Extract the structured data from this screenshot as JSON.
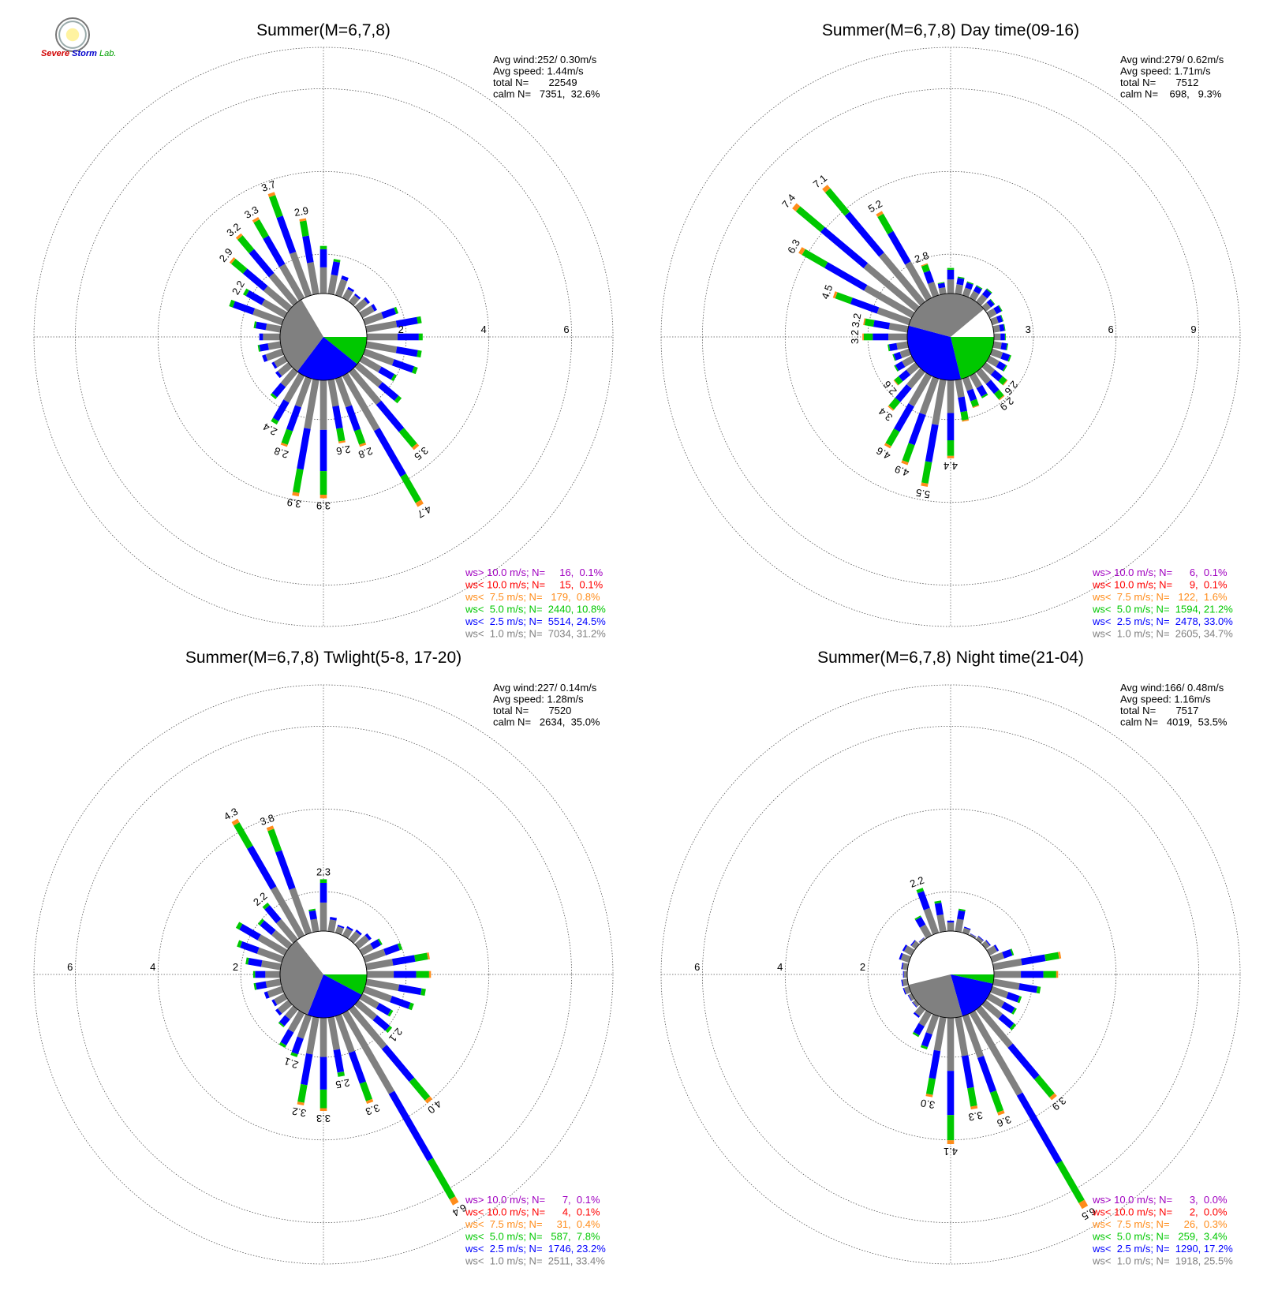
{
  "logo": {
    "text_a": "Severe",
    "text_b": "Storm",
    "text_c": "Lab."
  },
  "colors": {
    "gt10": "#a000c0",
    "lt10": "#ff0000",
    "lt75": "#ff8c1a",
    "lt50": "#00c800",
    "lt25": "#0000ff",
    "lt10ms": "#808080",
    "grid": "#555555"
  },
  "chart_data": [
    {
      "type": "windrose",
      "title": "Summer(M=6,7,8)",
      "stats": [
        "Avg wind:252/ 0.30m/s",
        "Avg speed: 1.44m/s",
        "total N=       22549",
        "calm N=   7351,  32.6%"
      ],
      "ring_labels": [
        "2",
        "4",
        "6"
      ],
      "ring_label_side": "right",
      "rmax": 7,
      "calm_pie": [
        {
          "class": "lt50",
          "frac": 0.108
        },
        {
          "class": "lt25",
          "frac": 0.245
        },
        {
          "class": "lt10ms",
          "frac": 0.312
        }
      ],
      "bars": [
        {
          "dir": 0,
          "total": 2.2
        },
        {
          "dir": 10,
          "total": 1.9
        },
        {
          "dir": 20,
          "total": 1.55
        },
        {
          "dir": 30,
          "total": 1.35
        },
        {
          "dir": 40,
          "total": 1.3
        },
        {
          "dir": 50,
          "total": 1.4
        },
        {
          "dir": 60,
          "total": 1.45
        },
        {
          "dir": 70,
          "total": 1.9
        },
        {
          "dir": 80,
          "total": 2.4
        },
        {
          "dir": 90,
          "total": 2.4
        },
        {
          "dir": 100,
          "total": 2.4
        },
        {
          "dir": 110,
          "total": 2.4
        },
        {
          "dir": 120,
          "total": 2.0
        },
        {
          "dir": 130,
          "total": 2.4
        },
        {
          "dir": 140,
          "total": 3.5,
          "label": "3.5"
        },
        {
          "dir": 150,
          "total": 4.7,
          "label": "4.7"
        },
        {
          "dir": 160,
          "total": 2.8,
          "label": "2.8"
        },
        {
          "dir": 170,
          "total": 2.6,
          "label": "2.6"
        },
        {
          "dir": 180,
          "total": 3.9,
          "label": "3.9"
        },
        {
          "dir": 190,
          "total": 3.9,
          "label": "3.9"
        },
        {
          "dir": 200,
          "total": 2.8,
          "label": "2.8"
        },
        {
          "dir": 210,
          "total": 2.4,
          "label": "2.4"
        },
        {
          "dir": 220,
          "total": 1.9
        },
        {
          "dir": 230,
          "total": 1.45
        },
        {
          "dir": 240,
          "total": 1.4
        },
        {
          "dir": 250,
          "total": 1.55
        },
        {
          "dir": 260,
          "total": 1.6
        },
        {
          "dir": 270,
          "total": 1.55
        },
        {
          "dir": 280,
          "total": 1.7
        },
        {
          "dir": 290,
          "total": 2.4
        },
        {
          "dir": 300,
          "total": 2.2,
          "label": "2.2"
        },
        {
          "dir": 310,
          "total": 2.9,
          "label": "2.9"
        },
        {
          "dir": 320,
          "total": 3.2,
          "label": "3.2"
        },
        {
          "dir": 330,
          "total": 3.3,
          "label": "3.3"
        },
        {
          "dir": 340,
          "total": 3.7,
          "label": "3.7"
        },
        {
          "dir": 350,
          "total": 2.9,
          "label": "2.9"
        }
      ],
      "legend": [
        {
          "class": "gt10",
          "text": "ws> 10.0 m/s; N=     16,  0.1%"
        },
        {
          "class": "lt10",
          "text": "ws< 10.0 m/s; N=     15,  0.1%"
        },
        {
          "class": "lt75",
          "text": "ws<  7.5 m/s; N=   179,  0.8%"
        },
        {
          "class": "lt50",
          "text": "ws<  5.0 m/s; N=  2440, 10.8%"
        },
        {
          "class": "lt25",
          "text": "ws<  2.5 m/s; N=  5514, 24.5%"
        },
        {
          "class": "lt10ms",
          "text": "ws<  1.0 m/s; N=  7034, 31.2%"
        }
      ]
    },
    {
      "type": "windrose",
      "title": "Summer(M=6,7,8) Day time(09-16)",
      "stats": [
        "Avg wind:279/ 0.62m/s",
        "Avg speed: 1.71m/s",
        "total N=       7512",
        "calm N=    698,   9.3%"
      ],
      "ring_labels": [
        "3",
        "6",
        "9"
      ],
      "ring_label_side": "right",
      "rmax": 10.5,
      "calm_pie": [
        {
          "class": "lt50",
          "frac": 0.212
        },
        {
          "class": "lt25",
          "frac": 0.33
        },
        {
          "class": "lt10ms",
          "frac": 0.347
        }
      ],
      "bars": [
        {
          "dir": 0,
          "total": 2.5
        },
        {
          "dir": 10,
          "total": 2.2
        },
        {
          "dir": 20,
          "total": 2.1
        },
        {
          "dir": 30,
          "total": 2.1
        },
        {
          "dir": 40,
          "total": 2.2
        },
        {
          "dir": 50,
          "total": 2.0
        },
        {
          "dir": 60,
          "total": 2.1
        },
        {
          "dir": 70,
          "total": 2.0
        },
        {
          "dir": 80,
          "total": 2.0
        },
        {
          "dir": 90,
          "total": 2.0
        },
        {
          "dir": 100,
          "total": 2.1
        },
        {
          "dir": 110,
          "total": 2.3
        },
        {
          "dir": 120,
          "total": 2.3
        },
        {
          "dir": 130,
          "total": 2.6,
          "label": "2.6"
        },
        {
          "dir": 140,
          "total": 2.9,
          "label": "2.9"
        },
        {
          "dir": 150,
          "total": 2.5
        },
        {
          "dir": 160,
          "total": 2.7
        },
        {
          "dir": 170,
          "total": 3.1
        },
        {
          "dir": 180,
          "total": 4.4,
          "label": "4.4"
        },
        {
          "dir": 190,
          "total": 5.5,
          "label": "5.5"
        },
        {
          "dir": 200,
          "total": 4.9,
          "label": "4.9"
        },
        {
          "dir": 210,
          "total": 4.6,
          "label": "4.6"
        },
        {
          "dir": 220,
          "total": 3.4,
          "label": "3.4"
        },
        {
          "dir": 230,
          "total": 2.6,
          "label": "2.6"
        },
        {
          "dir": 240,
          "total": 2.3
        },
        {
          "dir": 250,
          "total": 2.2
        },
        {
          "dir": 260,
          "total": 2.3
        },
        {
          "dir": 270,
          "total": 3.2,
          "label": "3.2"
        },
        {
          "dir": 280,
          "total": 3.2,
          "label": "3.2"
        },
        {
          "dir": 290,
          "total": 4.5,
          "label": "4.5"
        },
        {
          "dir": 300,
          "total": 6.3,
          "label": "6.3"
        },
        {
          "dir": 310,
          "total": 7.4,
          "label": "7.4"
        },
        {
          "dir": 320,
          "total": 7.1,
          "label": "7.1"
        },
        {
          "dir": 330,
          "total": 5.2,
          "label": "5.2"
        },
        {
          "dir": 340,
          "total": 2.8,
          "label": "2.8"
        },
        {
          "dir": 350,
          "total": 2.0
        }
      ],
      "legend": [
        {
          "class": "gt10",
          "text": "ws> 10.0 m/s; N=      6,  0.1%"
        },
        {
          "class": "lt10",
          "text": "ws< 10.0 m/s; N=      9,  0.1%"
        },
        {
          "class": "lt75",
          "text": "ws<  7.5 m/s; N=   122,  1.6%"
        },
        {
          "class": "lt50",
          "text": "ws<  5.0 m/s; N=  1594, 21.2%"
        },
        {
          "class": "lt25",
          "text": "ws<  2.5 m/s; N=  2478, 33.0%"
        },
        {
          "class": "lt10ms",
          "text": "ws<  1.0 m/s; N=  2605, 34.7%"
        }
      ]
    },
    {
      "type": "windrose",
      "title": "Summer(M=6,7,8) Twlight(5-8, 17-20)",
      "stats": [
        "Avg wind:227/ 0.14m/s",
        "Avg speed: 1.28m/s",
        "total N=       7520",
        "calm N=   2634,  35.0%"
      ],
      "ring_labels": [
        "2",
        "4",
        "6"
      ],
      "ring_label_side": "left",
      "rmax": 7,
      "calm_pie": [
        {
          "class": "lt50",
          "frac": 0.078
        },
        {
          "class": "lt25",
          "frac": 0.232
        },
        {
          "class": "lt10ms",
          "frac": 0.334
        }
      ],
      "bars": [
        {
          "dir": 0,
          "total": 2.3,
          "label": "2.3"
        },
        {
          "dir": 10,
          "total": 1.4
        },
        {
          "dir": 20,
          "total": 1.25
        },
        {
          "dir": 30,
          "total": 1.3
        },
        {
          "dir": 40,
          "total": 1.35
        },
        {
          "dir": 50,
          "total": 1.45
        },
        {
          "dir": 60,
          "total": 1.6
        },
        {
          "dir": 70,
          "total": 2.0
        },
        {
          "dir": 80,
          "total": 2.6
        },
        {
          "dir": 90,
          "total": 2.6
        },
        {
          "dir": 100,
          "total": 2.5
        },
        {
          "dir": 110,
          "total": 2.3
        },
        {
          "dir": 120,
          "total": 1.9
        },
        {
          "dir": 130,
          "total": 2.1,
          "label": "2.1"
        },
        {
          "dir": 140,
          "total": 4.0,
          "label": "4.0"
        },
        {
          "dir": 150,
          "total": 6.4,
          "label": "6.4"
        },
        {
          "dir": 160,
          "total": 3.3,
          "label": "3.3"
        },
        {
          "dir": 170,
          "total": 2.5,
          "label": "2.5"
        },
        {
          "dir": 180,
          "total": 3.3,
          "label": "3.3"
        },
        {
          "dir": 190,
          "total": 3.2,
          "label": "3.2"
        },
        {
          "dir": 200,
          "total": 2.1,
          "label": "2.1"
        },
        {
          "dir": 210,
          "total": 2.0
        },
        {
          "dir": 220,
          "total": 1.6
        },
        {
          "dir": 230,
          "total": 1.45
        },
        {
          "dir": 240,
          "total": 1.4
        },
        {
          "dir": 250,
          "total": 1.5
        },
        {
          "dir": 260,
          "total": 1.7
        },
        {
          "dir": 270,
          "total": 1.7
        },
        {
          "dir": 280,
          "total": 1.9
        },
        {
          "dir": 290,
          "total": 2.2
        },
        {
          "dir": 300,
          "total": 2.4
        },
        {
          "dir": 310,
          "total": 2.0
        },
        {
          "dir": 320,
          "total": 2.2,
          "label": "2.2"
        },
        {
          "dir": 330,
          "total": 4.3,
          "label": "4.3"
        },
        {
          "dir": 340,
          "total": 3.8,
          "label": "3.8"
        },
        {
          "dir": 350,
          "total": 1.6
        }
      ],
      "legend": [
        {
          "class": "gt10",
          "text": "ws> 10.0 m/s; N=      7,  0.1%"
        },
        {
          "class": "lt10",
          "text": "ws< 10.0 m/s; N=      4,  0.1%"
        },
        {
          "class": "lt75",
          "text": "ws<  7.5 m/s; N=     31,  0.4%"
        },
        {
          "class": "lt50",
          "text": "ws<  5.0 m/s; N=   587,  7.8%"
        },
        {
          "class": "lt25",
          "text": "ws<  2.5 m/s; N=  1746, 23.2%"
        },
        {
          "class": "lt10ms",
          "text": "ws<  1.0 m/s; N=  2511, 33.4%"
        }
      ]
    },
    {
      "type": "windrose",
      "title": "Summer(M=6,7,8) Night time(21-04)",
      "stats": [
        "Avg wind:166/ 0.48m/s",
        "Avg speed: 1.16m/s",
        "total N=       7517",
        "calm N=   4019,  53.5%"
      ],
      "ring_labels": [
        "2",
        "4",
        "6"
      ],
      "ring_label_side": "left",
      "rmax": 7,
      "calm_pie": [
        {
          "class": "lt50",
          "frac": 0.034
        },
        {
          "class": "lt25",
          "frac": 0.172
        },
        {
          "class": "lt10ms",
          "frac": 0.255
        }
      ],
      "bars": [
        {
          "dir": 0,
          "total": 1.3
        },
        {
          "dir": 10,
          "total": 1.6
        },
        {
          "dir": 20,
          "total": 1.2
        },
        {
          "dir": 30,
          "total": 1.1
        },
        {
          "dir": 40,
          "total": 1.15
        },
        {
          "dir": 50,
          "total": 1.2
        },
        {
          "dir": 60,
          "total": 1.3
        },
        {
          "dir": 70,
          "total": 1.6
        },
        {
          "dir": 80,
          "total": 2.7
        },
        {
          "dir": 90,
          "total": 2.6
        },
        {
          "dir": 100,
          "total": 2.2
        },
        {
          "dir": 110,
          "total": 1.8
        },
        {
          "dir": 120,
          "total": 1.8
        },
        {
          "dir": 130,
          "total": 2.0
        },
        {
          "dir": 140,
          "total": 3.9,
          "label": "3.9"
        },
        {
          "dir": 150,
          "total": 6.5,
          "label": "6.5"
        },
        {
          "dir": 160,
          "total": 3.6,
          "label": "3.6"
        },
        {
          "dir": 170,
          "total": 3.3,
          "label": "3.3"
        },
        {
          "dir": 180,
          "total": 4.1,
          "label": "4.1"
        },
        {
          "dir": 190,
          "total": 3.0,
          "label": "3.0"
        },
        {
          "dir": 200,
          "total": 1.9
        },
        {
          "dir": 210,
          "total": 1.7
        },
        {
          "dir": 220,
          "total": 1.3
        },
        {
          "dir": 230,
          "total": 1.15
        },
        {
          "dir": 240,
          "total": 1.15
        },
        {
          "dir": 250,
          "total": 1.2
        },
        {
          "dir": 260,
          "total": 1.2
        },
        {
          "dir": 270,
          "total": 1.15
        },
        {
          "dir": 280,
          "total": 1.2
        },
        {
          "dir": 290,
          "total": 1.3
        },
        {
          "dir": 300,
          "total": 1.3
        },
        {
          "dir": 310,
          "total": 1.2
        },
        {
          "dir": 320,
          "total": 1.1
        },
        {
          "dir": 330,
          "total": 1.6
        },
        {
          "dir": 340,
          "total": 2.2,
          "label": "2.2"
        },
        {
          "dir": 350,
          "total": 1.8
        }
      ],
      "legend": [
        {
          "class": "gt10",
          "text": "ws> 10.0 m/s; N=      3,  0.0%"
        },
        {
          "class": "lt10",
          "text": "ws< 10.0 m/s; N=      2,  0.0%"
        },
        {
          "class": "lt75",
          "text": "ws<  7.5 m/s; N=     26,  0.3%"
        },
        {
          "class": "lt50",
          "text": "ws<  5.0 m/s; N=   259,  3.4%"
        },
        {
          "class": "lt25",
          "text": "ws<  2.5 m/s; N=  1290, 17.2%"
        },
        {
          "class": "lt10ms",
          "text": "ws<  1.0 m/s; N=  1918, 25.5%"
        }
      ]
    }
  ]
}
